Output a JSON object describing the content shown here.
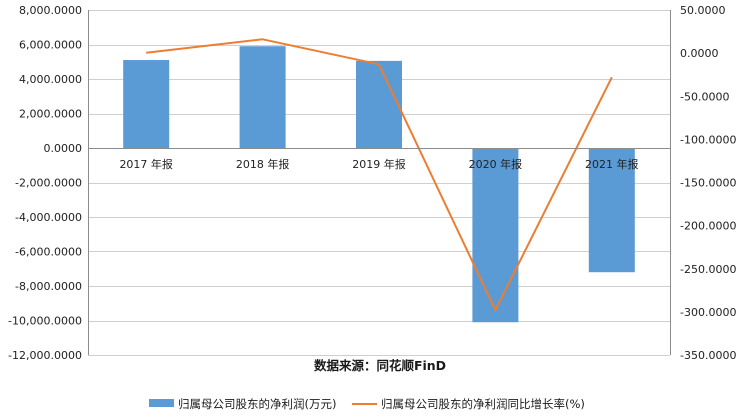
{
  "chart_data": {
    "type": "bar+line",
    "categories": [
      "2017 年报",
      "2018 年报",
      "2019 年报",
      "2020 年报",
      "2021 年报"
    ],
    "series": [
      {
        "name": "归属母公司股东的净利润(万元)",
        "type": "bar",
        "axis": "left",
        "color": "#5b9bd5",
        "values": [
          5100,
          5900,
          5050,
          -10100,
          -7200
        ]
      },
      {
        "name": "归属母公司股东的净利润同比增长率(%)",
        "type": "line",
        "axis": "right",
        "color": "#ed7d31",
        "values": [
          0.5,
          16.0,
          -13.0,
          -298.0,
          -28.0
        ]
      }
    ],
    "left_axis": {
      "ylim": [
        -12000,
        8000
      ],
      "ticks": [
        "8,000.0000",
        "6,000.0000",
        "4,000.0000",
        "2,000.0000",
        "0.0000",
        "-2,000.0000",
        "-4,000.0000",
        "-6,000.0000",
        "-8,000.0000",
        "-10,000.0000",
        "-12,000.0000"
      ]
    },
    "right_axis": {
      "ylim": [
        -350,
        50
      ],
      "ticks": [
        "50.0000",
        "0.0000",
        "-50.0000",
        "-100.0000",
        "-150.0000",
        "-200.0000",
        "-250.0000",
        "-300.0000",
        "-350.0000"
      ]
    },
    "grid": true,
    "source_text": "数据来源：同花顺FinD",
    "legend_position": "bottom"
  }
}
